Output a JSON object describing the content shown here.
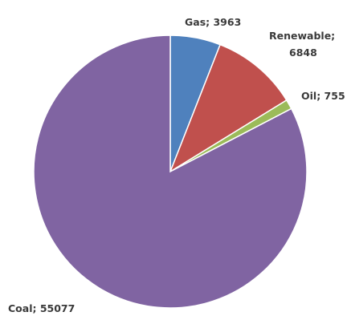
{
  "chart_data": {
    "type": "pie",
    "title": "",
    "slices": [
      {
        "label": "Gas",
        "value": 3963,
        "color": "#4f81bd",
        "text": "Gas; 3963"
      },
      {
        "label": "Renewable",
        "value": 6848,
        "color": "#c0504d",
        "text_lines": [
          "Renewable;",
          "6848"
        ]
      },
      {
        "label": "Oil",
        "value": 755,
        "color": "#9bbb59",
        "text": "Oil; 755"
      },
      {
        "label": "Coal",
        "value": 55077,
        "color": "#8064a2",
        "text": "Coal; 55077"
      }
    ],
    "start_angle_deg": 0,
    "direction": "clockwise",
    "legend": "none"
  }
}
